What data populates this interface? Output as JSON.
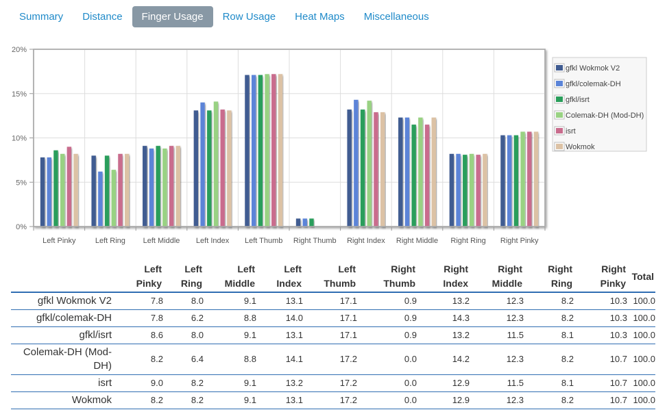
{
  "tabs": [
    {
      "label": "Summary",
      "active": false
    },
    {
      "label": "Distance",
      "active": false
    },
    {
      "label": "Finger Usage",
      "active": true
    },
    {
      "label": "Row Usage",
      "active": false
    },
    {
      "label": "Heat Maps",
      "active": false
    },
    {
      "label": "Miscellaneous",
      "active": false
    }
  ],
  "chart_data": {
    "type": "bar",
    "categories": [
      "Left Pinky",
      "Left Ring",
      "Left Middle",
      "Left Index",
      "Left Thumb",
      "Right Thumb",
      "Right Index",
      "Right Middle",
      "Right Ring",
      "Right Pinky"
    ],
    "series": [
      {
        "name": "gfkl Wokmok V2",
        "color": "#3f5b91",
        "values": [
          7.8,
          8.0,
          9.1,
          13.1,
          17.1,
          0.9,
          13.2,
          12.3,
          8.2,
          10.3
        ]
      },
      {
        "name": "gfkl/colemak-DH",
        "color": "#5b84d8",
        "values": [
          7.8,
          6.2,
          8.8,
          14.0,
          17.1,
          0.9,
          14.3,
          12.3,
          8.2,
          10.3
        ]
      },
      {
        "name": "gfkl/isrt",
        "color": "#2a9e5b",
        "values": [
          8.6,
          8.0,
          9.1,
          13.1,
          17.1,
          0.9,
          13.2,
          11.5,
          8.1,
          10.3
        ]
      },
      {
        "name": "Colemak-DH (Mod-DH)",
        "color": "#99d283",
        "values": [
          8.2,
          6.4,
          8.8,
          14.1,
          17.2,
          0.0,
          14.2,
          12.3,
          8.2,
          10.7
        ]
      },
      {
        "name": "isrt",
        "color": "#c96c8d",
        "values": [
          9.0,
          8.2,
          9.1,
          13.2,
          17.2,
          0.0,
          12.9,
          11.5,
          8.1,
          10.7
        ]
      },
      {
        "name": "Wokmok",
        "color": "#dcc2a5",
        "values": [
          8.2,
          8.2,
          9.1,
          13.1,
          17.2,
          0.0,
          12.9,
          12.3,
          8.2,
          10.7
        ]
      }
    ],
    "ylim": [
      0,
      20
    ],
    "yticks": [
      "0%",
      "5%",
      "10%",
      "15%",
      "20%"
    ],
    "grid": true,
    "legend_position": "top-right"
  },
  "table": {
    "headers": [
      [
        "Left",
        "Pinky"
      ],
      [
        "Left",
        "Ring"
      ],
      [
        "Left",
        "Middle"
      ],
      [
        "Left",
        "Index"
      ],
      [
        "Left",
        "Thumb"
      ],
      [
        "Right",
        "Thumb"
      ],
      [
        "Right",
        "Index"
      ],
      [
        "Right",
        "Middle"
      ],
      [
        "Right",
        "Ring"
      ],
      [
        "Right",
        "Pinky"
      ]
    ],
    "total_header": "Total",
    "rows": [
      {
        "label": "gfkl Wokmok V2",
        "values": [
          "7.8",
          "8.0",
          "9.1",
          "13.1",
          "17.1",
          "0.9",
          "13.2",
          "12.3",
          "8.2",
          "10.3",
          "100.0"
        ]
      },
      {
        "label": "gfkl/colemak-DH",
        "values": [
          "7.8",
          "6.2",
          "8.8",
          "14.0",
          "17.1",
          "0.9",
          "14.3",
          "12.3",
          "8.2",
          "10.3",
          "100.0"
        ]
      },
      {
        "label": "gfkl/isrt",
        "values": [
          "8.6",
          "8.0",
          "9.1",
          "13.1",
          "17.1",
          "0.9",
          "13.2",
          "11.5",
          "8.1",
          "10.3",
          "100.0"
        ]
      },
      {
        "label": "Colemak-DH (Mod-DH)",
        "values": [
          "8.2",
          "6.4",
          "8.8",
          "14.1",
          "17.2",
          "0.0",
          "14.2",
          "12.3",
          "8.2",
          "10.7",
          "100.0"
        ]
      },
      {
        "label": "isrt",
        "values": [
          "9.0",
          "8.2",
          "9.1",
          "13.2",
          "17.2",
          "0.0",
          "12.9",
          "11.5",
          "8.1",
          "10.7",
          "100.0"
        ]
      },
      {
        "label": "Wokmok",
        "values": [
          "8.2",
          "8.2",
          "9.1",
          "13.1",
          "17.2",
          "0.0",
          "12.9",
          "12.3",
          "8.2",
          "10.7",
          "100.0"
        ]
      }
    ]
  }
}
